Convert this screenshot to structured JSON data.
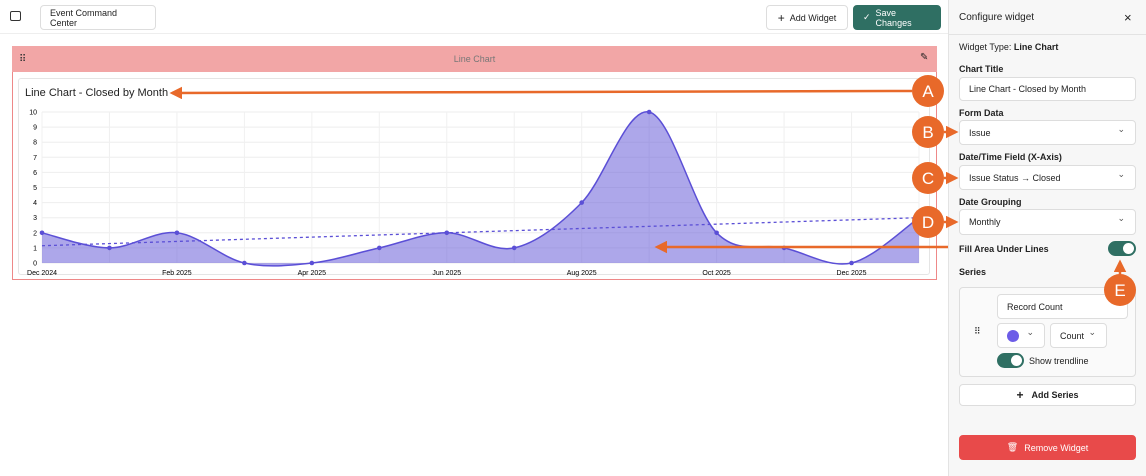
{
  "toolbar": {
    "dashboard_name": "Event Command Center",
    "add_widget": "Add Widget",
    "save_changes": "Save Changes"
  },
  "widget": {
    "header": "Line Chart",
    "chart_data": {
      "type": "line",
      "title": "Line Chart - Closed by Month",
      "categories": [
        "Dec 2024",
        null,
        "Feb 2025",
        null,
        "Apr 2025",
        null,
        "Jun 2025",
        null,
        "Aug 2025",
        null,
        "Oct 2025",
        null,
        "Dec 2025",
        null
      ],
      "series": [
        {
          "name": "Record Count",
          "color": "#5b4fd6",
          "values": [
            2,
            1,
            2,
            0,
            0,
            1,
            2,
            1,
            4,
            10,
            2,
            1,
            0,
            3
          ]
        }
      ],
      "fill": true,
      "trendline": true,
      "ylim": [
        0,
        10
      ],
      "yticks": [
        0,
        1,
        2,
        3,
        4,
        5,
        6,
        7,
        8,
        9,
        10
      ],
      "grid": true
    }
  },
  "panel": {
    "title": "Configure widget",
    "widget_type_label": "Widget Type:",
    "widget_type_value": "Line Chart",
    "chart_title_label": "Chart Title",
    "form_data_label": "Form Data",
    "form_data_value": "Issue",
    "date_field_label": "Date/Time Field (X-Axis)",
    "date_field_value": "Issue Status → Closed",
    "date_grouping_label": "Date Grouping",
    "date_grouping_value": "Monthly",
    "fill_area_label": "Fill Area Under Lines",
    "series_label": "Series",
    "aggregation": "Count",
    "show_trendline": "Show trendline",
    "add_series": "Add Series",
    "remove_widget": "Remove Widget"
  },
  "annotations": [
    "A",
    "B",
    "C",
    "D",
    "E"
  ]
}
